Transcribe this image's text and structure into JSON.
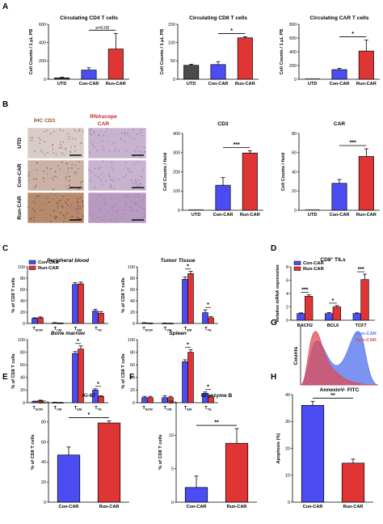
{
  "colors": {
    "utd": "#4a4a4a",
    "con": "#4b4df2",
    "run": "#e03535",
    "ihc_bg": "#d9cbc6",
    "rna_bg": "#c7b3cf",
    "cd3_label": "#8b5a2b",
    "rna_label": "#cc2222",
    "flow_con": "#5a78ee",
    "flow_run": "#e04a55"
  },
  "panel_letters": [
    "A",
    "B",
    "C",
    "D",
    "E",
    "F",
    "G",
    "H"
  ],
  "panel_b_images": {
    "col_labels": [
      "IHC CD3",
      "RNAscope",
      "CAR"
    ],
    "row_labels": [
      "UTD",
      "Con-CAR",
      "Run-CAR"
    ]
  },
  "panel_g_flow": {
    "legend": [
      "Con-CAR",
      "Run-CAR"
    ],
    "ylabel": "Counts",
    "xlabel": "AnnexinV- FITC"
  },
  "chart_data": [
    {
      "id": "A1",
      "type": "bar",
      "title": "Circulating CD4 T cells",
      "ylabel": "Cell Counts / 1 μL PB",
      "ylim": [
        0,
        600
      ],
      "yticks": [
        "0",
        "200",
        "400",
        "600"
      ],
      "categories": [
        "UTD",
        "Con-CAR",
        "Run-CAR"
      ],
      "values": [
        15,
        100,
        330
      ],
      "errors": [
        8,
        25,
        170
      ],
      "annotation": "p=0.09"
    },
    {
      "id": "A2",
      "type": "bar",
      "title": "Circulating CD8 T cells",
      "ylabel": "Cell Counts / 1 μL PB",
      "ylim": [
        0,
        150
      ],
      "yticks": [
        "0",
        "50",
        "100",
        "150"
      ],
      "categories": [
        "UTD",
        "Con-CAR",
        "Run-CAR"
      ],
      "values": [
        38,
        40,
        113
      ],
      "errors": [
        3,
        8,
        3
      ],
      "annotation": "*"
    },
    {
      "id": "A3",
      "type": "bar",
      "title": "Circulating CAR T cells",
      "ylabel": "Cell Counts / 1 μL PB",
      "ylim": [
        0,
        800
      ],
      "yticks": [
        "0",
        "200",
        "400",
        "600",
        "800"
      ],
      "categories": [
        "UTD",
        "Con-CAR",
        "Run-CAR"
      ],
      "values": [
        0,
        140,
        410
      ],
      "errors": [
        0,
        20,
        160
      ],
      "annotation": "*"
    },
    {
      "id": "B1",
      "type": "bar",
      "title": "CD3",
      "ylabel": "Cell Counts / field",
      "ylim": [
        0,
        400
      ],
      "yticks": [
        "0",
        "100",
        "200",
        "300",
        "400"
      ],
      "categories": [
        "UTD",
        "Con-CAR",
        "Run-CAR"
      ],
      "values": [
        0,
        130,
        298
      ],
      "errors": [
        0,
        40,
        12
      ],
      "annotation": "***"
    },
    {
      "id": "B2",
      "type": "bar",
      "title": "CAR",
      "ylabel": "Cell Counts / field",
      "ylim": [
        0,
        80
      ],
      "yticks": [
        "0",
        "20",
        "40",
        "60",
        "80"
      ],
      "categories": [
        "UTD",
        "Con-CAR",
        "Run-CAR"
      ],
      "values": [
        0,
        28,
        56
      ],
      "errors": [
        0,
        4,
        8
      ],
      "annotation": "***"
    },
    {
      "id": "C1",
      "type": "bar",
      "title": "Peripheral blood",
      "ylabel": "% of CD8 T cells",
      "ylim": [
        0,
        100
      ],
      "yticks": [
        "0",
        "20",
        "40",
        "60",
        "80",
        "100"
      ],
      "categories": [
        "SCM",
        "CM",
        "EM",
        "TE"
      ],
      "legend": [
        "Con-CAR",
        "Run-CAR"
      ],
      "series": [
        {
          "name": "Con-CAR",
          "values": [
            9,
            1,
            69,
            22
          ],
          "errors": [
            1,
            0.5,
            3,
            3
          ]
        },
        {
          "name": "Run-CAR",
          "values": [
            10,
            0.5,
            70,
            18
          ],
          "errors": [
            1.5,
            0.3,
            3,
            3
          ]
        }
      ],
      "annotations": []
    },
    {
      "id": "C2",
      "type": "bar",
      "title": "Tumor Tissue",
      "ylabel": "% of CD8 T cells",
      "ylim": [
        0,
        100
      ],
      "yticks": [
        "0",
        "20",
        "40",
        "60",
        "80",
        "100"
      ],
      "categories": [
        "SCM",
        "CM",
        "EM",
        "TE"
      ],
      "series": [
        {
          "name": "Con-CAR",
          "values": [
            1,
            0.5,
            78,
            19
          ],
          "errors": [
            0.5,
            0.3,
            4,
            5
          ]
        },
        {
          "name": "Run-CAR",
          "values": [
            0.5,
            0.3,
            88,
            10
          ],
          "errors": [
            0.3,
            0.2,
            4,
            2
          ]
        }
      ],
      "annotations": [
        {
          "category": "EM",
          "text": "*"
        },
        {
          "category": "TE",
          "text": "*"
        }
      ]
    },
    {
      "id": "C3",
      "type": "bar",
      "title": "Bone marrow",
      "ylabel": "% of CD8 T cells",
      "ylim": [
        0,
        100
      ],
      "yticks": [
        "0",
        "20",
        "40",
        "60",
        "80",
        "100"
      ],
      "categories": [
        "SCM",
        "CM",
        "EM",
        "TE"
      ],
      "series": [
        {
          "name": "Con-CAR",
          "values": [
            2,
            0.5,
            78,
            20
          ],
          "errors": [
            0.5,
            0.3,
            3,
            2
          ]
        },
        {
          "name": "Run-CAR",
          "values": [
            3,
            0.3,
            85,
            10
          ],
          "errors": [
            1,
            0.2,
            5,
            1
          ]
        }
      ],
      "annotations": [
        {
          "category": "EM",
          "text": "*"
        },
        {
          "category": "TE",
          "text": "*"
        }
      ]
    },
    {
      "id": "C4",
      "type": "bar",
      "title": "Spleen",
      "ylabel": "% of CD8 T cells",
      "ylim": [
        0,
        100
      ],
      "yticks": [
        "0",
        "20",
        "40",
        "60",
        "80",
        "100"
      ],
      "categories": [
        "SCM",
        "CM",
        "EM",
        "TE"
      ],
      "series": [
        {
          "name": "Con-CAR",
          "values": [
            8,
            8,
            65,
            15
          ],
          "errors": [
            2,
            3,
            3,
            2
          ]
        },
        {
          "name": "Run-CAR",
          "values": [
            8,
            8,
            80,
            9
          ],
          "errors": [
            2,
            2,
            4,
            2
          ]
        }
      ],
      "annotations": [
        {
          "category": "EM",
          "text": "*"
        },
        {
          "category": "TE",
          "text": "*"
        }
      ]
    },
    {
      "id": "D",
      "type": "bar",
      "title": "CD8⁺ TILs",
      "ylabel": "Relative mRNA expression",
      "ylim": [
        0,
        8
      ],
      "yticks": [
        "0",
        "2",
        "4",
        "6",
        "8"
      ],
      "categories": [
        "BACH2",
        "BCL6",
        "TCF7"
      ],
      "legend": [
        "Con-CAR",
        "Run-CAR"
      ],
      "series": [
        {
          "name": "Con-CAR",
          "values": [
            1,
            1,
            1
          ],
          "errors": [
            0.1,
            0.15,
            0.1
          ]
        },
        {
          "name": "Run-CAR",
          "values": [
            3.6,
            2,
            6.1
          ],
          "errors": [
            0.2,
            0.2,
            0.8
          ]
        }
      ],
      "annotations": [
        "***",
        "*",
        "***"
      ]
    },
    {
      "id": "E",
      "type": "bar",
      "title": "Ki-67",
      "ylabel": "% of CD8 T cells",
      "ylim": [
        0,
        100
      ],
      "yticks": [
        "0",
        "20",
        "40",
        "60",
        "80",
        "100"
      ],
      "categories": [
        "Con-CAR",
        "Run-CAR"
      ],
      "values": [
        47,
        79
      ],
      "errors": [
        8,
        2
      ],
      "annotation": "*"
    },
    {
      "id": "F",
      "type": "bar",
      "title": "Granzyme B",
      "ylabel": "% of CD8 T cells",
      "ylim": [
        0,
        15
      ],
      "yticks": [
        "0",
        "5",
        "10",
        "15"
      ],
      "categories": [
        "Con-CAR",
        "Run-CAR"
      ],
      "values": [
        2.2,
        8.8
      ],
      "errors": [
        1.7,
        2.2
      ],
      "annotation": "**"
    },
    {
      "id": "H",
      "type": "bar",
      "title": "",
      "ylabel": "Apoptosis (%)",
      "ylim": [
        0,
        40
      ],
      "yticks": [
        "0",
        "10",
        "20",
        "30",
        "40"
      ],
      "categories": [
        "Con-CAR",
        "Run-CAR"
      ],
      "values": [
        36,
        14.5
      ],
      "errors": [
        1.5,
        1.5
      ],
      "annotation": "**"
    }
  ]
}
